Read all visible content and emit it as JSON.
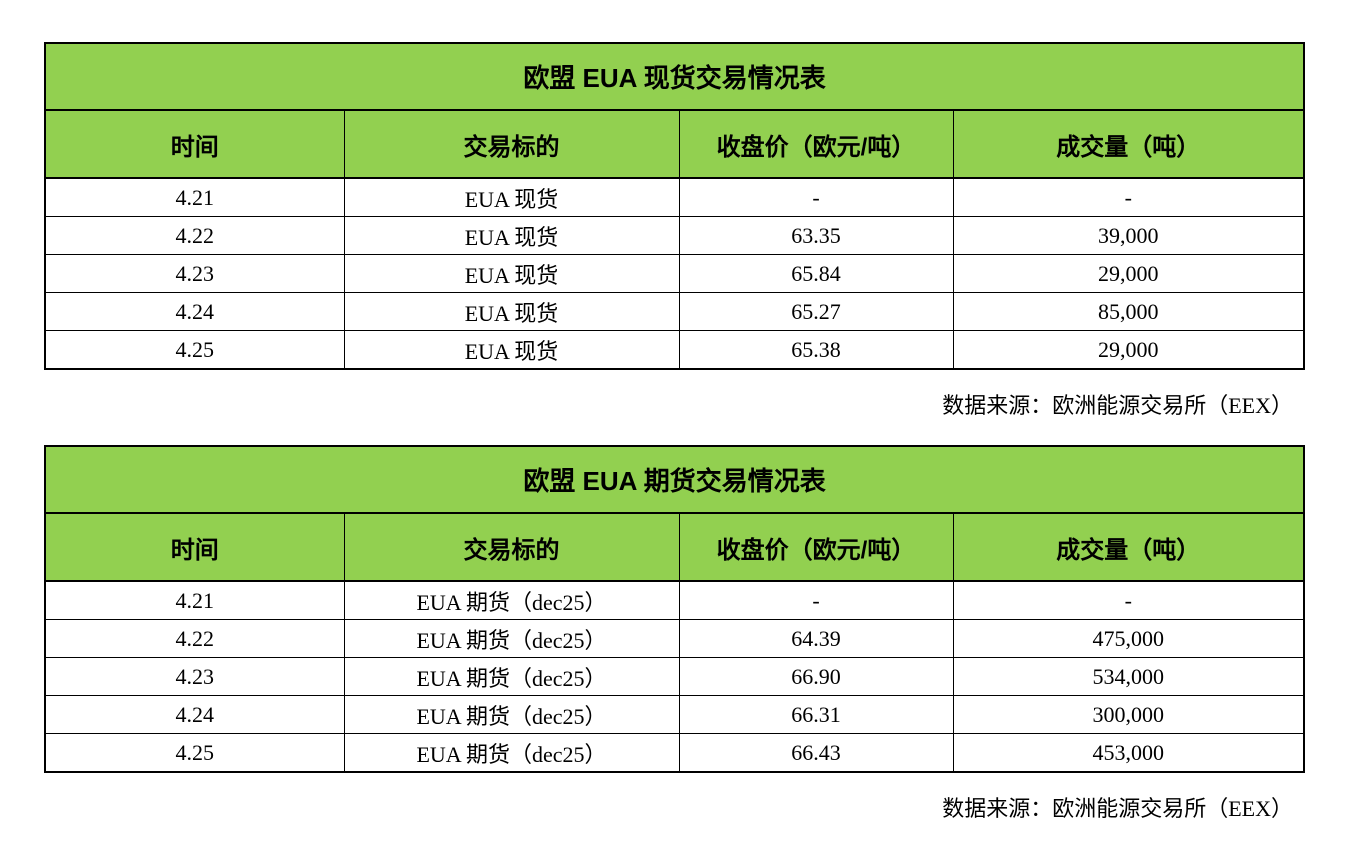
{
  "page": {
    "background_color": "#ffffff",
    "text_color": "#000000",
    "border_color": "#000000",
    "header_fill_color": "#92d050"
  },
  "tables": [
    {
      "title": "欧盟 EUA 现货交易情况表",
      "columns": [
        "时间",
        "交易标的",
        "收盘价（欧元/吨）",
        "成交量（吨）"
      ],
      "rows": [
        [
          "4.21",
          "EUA 现货",
          "-",
          "-"
        ],
        [
          "4.22",
          "EUA 现货",
          "63.35",
          "39,000"
        ],
        [
          "4.23",
          "EUA 现货",
          "65.84",
          "29,000"
        ],
        [
          "4.24",
          "EUA 现货",
          "65.27",
          "85,000"
        ],
        [
          "4.25",
          "EUA 现货",
          "65.38",
          "29,000"
        ]
      ],
      "source_note": "数据来源：欧洲能源交易所（EEX）"
    },
    {
      "title": "欧盟 EUA 期货交易情况表",
      "columns": [
        "时间",
        "交易标的",
        "收盘价（欧元/吨）",
        "成交量（吨）"
      ],
      "rows": [
        [
          "4.21",
          "EUA 期货（dec25）",
          "-",
          "-"
        ],
        [
          "4.22",
          "EUA 期货（dec25）",
          "64.39",
          "475,000"
        ],
        [
          "4.23",
          "EUA 期货（dec25）",
          "66.90",
          "534,000"
        ],
        [
          "4.24",
          "EUA 期货（dec25）",
          "66.31",
          "300,000"
        ],
        [
          "4.25",
          "EUA 期货（dec25）",
          "66.43",
          "453,000"
        ]
      ],
      "source_note": "数据来源：欧洲能源交易所（EEX）"
    }
  ]
}
